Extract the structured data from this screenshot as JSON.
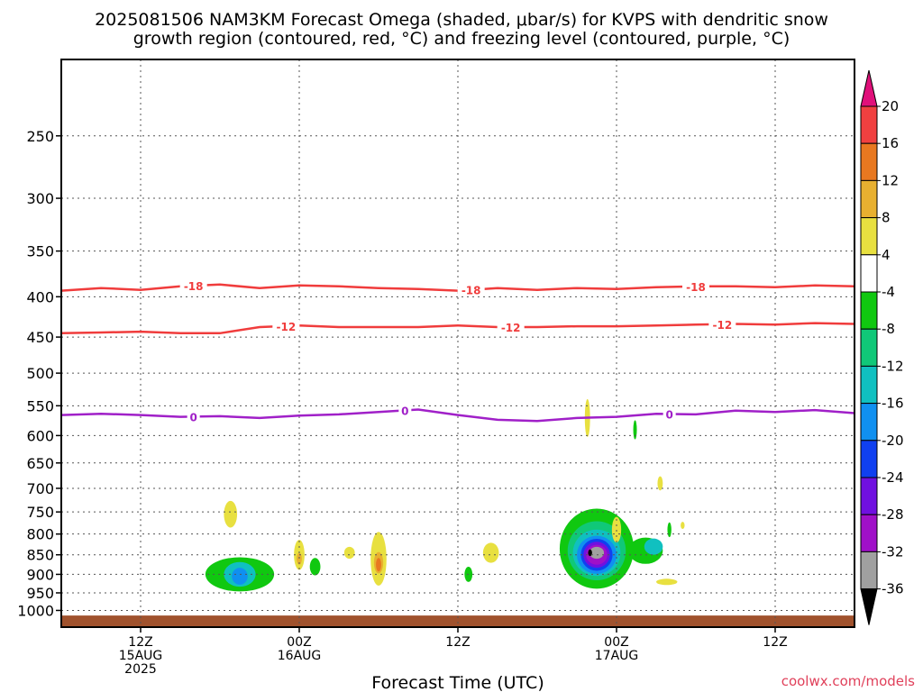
{
  "chart_data": {
    "type": "heatmap",
    "title": [
      "2025081506 NAM3KM Forecast Omega (shaded, μbar/s) for KVPS with dendritic snow",
      "growth region (contoured, red, °C) and freezing level (contoured, purple, °C)"
    ],
    "xlabel": "Forecast Time (UTC)",
    "ylabel": "",
    "credit": "coolwx.com/models",
    "x_range_hours": [
      0,
      60
    ],
    "x_ticks": [
      {
        "hour": 6,
        "label": [
          "12Z",
          "15AUG",
          "2025"
        ]
      },
      {
        "hour": 18,
        "label": [
          "00Z",
          "16AUG"
        ]
      },
      {
        "hour": 30,
        "label": [
          "12Z"
        ]
      },
      {
        "hour": 42,
        "label": [
          "00Z",
          "17AUG"
        ]
      },
      {
        "hour": 54,
        "label": [
          "12Z"
        ]
      }
    ],
    "y_axis": {
      "scale": "log",
      "reversed": true,
      "range": [
        1050,
        200
      ],
      "ticks": [
        250,
        300,
        350,
        400,
        450,
        500,
        550,
        600,
        650,
        700,
        750,
        800,
        850,
        900,
        950,
        1000
      ]
    },
    "grid": true,
    "terrain": {
      "color": "#a0522d",
      "pressure": 1015
    },
    "contours": [
      {
        "name": "-18",
        "color": "#f03c3c",
        "labels": [
          {
            "hour": 10,
            "text": "-18"
          },
          {
            "hour": 31,
            "text": "-18"
          },
          {
            "hour": 48,
            "text": "-18"
          }
        ],
        "x": [
          0,
          3,
          6,
          9,
          12,
          15,
          18,
          21,
          24,
          27,
          30,
          33,
          36,
          39,
          42,
          45,
          48,
          51,
          54,
          57,
          60
        ],
        "y": [
          393,
          390,
          392,
          388,
          386,
          390,
          387,
          388,
          390,
          391,
          393,
          390,
          392,
          390,
          391,
          389,
          388,
          388,
          389,
          387,
          388
        ]
      },
      {
        "name": "-12",
        "color": "#f03c3c",
        "labels": [
          {
            "hour": 17,
            "text": "-12"
          },
          {
            "hour": 34,
            "text": "-12"
          },
          {
            "hour": 50,
            "text": "-12"
          }
        ],
        "x": [
          0,
          3,
          6,
          9,
          12,
          15,
          18,
          21,
          24,
          27,
          30,
          33,
          36,
          39,
          42,
          45,
          48,
          51,
          54,
          57,
          60
        ],
        "y": [
          445,
          444,
          443,
          445,
          445,
          437,
          435,
          437,
          437,
          437,
          435,
          437,
          437,
          436,
          436,
          435,
          434,
          433,
          434,
          432,
          433
        ]
      },
      {
        "name": "0",
        "color": "#a020c8",
        "labels": [
          {
            "hour": 10,
            "text": "0"
          },
          {
            "hour": 26,
            "text": "0"
          },
          {
            "hour": 46,
            "text": "0"
          }
        ],
        "x": [
          0,
          3,
          6,
          9,
          12,
          15,
          18,
          21,
          24,
          27,
          30,
          33,
          36,
          39,
          42,
          45,
          48,
          51,
          54,
          57,
          60
        ],
        "y": [
          565,
          563,
          565,
          568,
          567,
          570,
          566,
          564,
          560,
          556,
          565,
          573,
          575,
          570,
          568,
          563,
          564,
          558,
          560,
          557,
          562
        ]
      }
    ],
    "omega_blobs": [
      {
        "hour": 12.8,
        "p": 755,
        "rx": 0.5,
        "ry": 55,
        "level": 4
      },
      {
        "hour": 13.5,
        "p": 900,
        "rx": 2.6,
        "ry": 85,
        "level": -4
      },
      {
        "hour": 13.5,
        "p": 900,
        "rx": 1.2,
        "ry": 60,
        "level": -12
      },
      {
        "hour": 13.5,
        "p": 905,
        "rx": 0.6,
        "ry": 40,
        "level": -16
      },
      {
        "hour": 18.0,
        "p": 850,
        "rx": 0.4,
        "ry": 70,
        "level": 4
      },
      {
        "hour": 18.0,
        "p": 860,
        "rx": 0.2,
        "ry": 25,
        "level": 8
      },
      {
        "hour": 19.2,
        "p": 880,
        "rx": 0.4,
        "ry": 40,
        "level": -4
      },
      {
        "hour": 21.8,
        "p": 845,
        "rx": 0.4,
        "ry": 25,
        "level": 4
      },
      {
        "hour": 24.0,
        "p": 860,
        "rx": 0.6,
        "ry": 130,
        "level": 4
      },
      {
        "hour": 24.0,
        "p": 870,
        "rx": 0.35,
        "ry": 50,
        "level": 8
      },
      {
        "hour": 24.0,
        "p": 875,
        "rx": 0.2,
        "ry": 30,
        "level": 12
      },
      {
        "hour": 30.8,
        "p": 900,
        "rx": 0.3,
        "ry": 35,
        "level": -4
      },
      {
        "hour": 32.5,
        "p": 845,
        "rx": 0.6,
        "ry": 45,
        "level": 4
      },
      {
        "hour": 39.8,
        "p": 570,
        "rx": 0.2,
        "ry": 60,
        "level": 4
      },
      {
        "hour": 40.5,
        "p": 835,
        "rx": 2.8,
        "ry": 190,
        "level": -4
      },
      {
        "hour": 40.5,
        "p": 840,
        "rx": 2.2,
        "ry": 140,
        "level": -8
      },
      {
        "hour": 40.5,
        "p": 845,
        "rx": 1.8,
        "ry": 110,
        "level": -12
      },
      {
        "hour": 40.5,
        "p": 850,
        "rx": 1.5,
        "ry": 90,
        "level": -16
      },
      {
        "hour": 40.5,
        "p": 850,
        "rx": 1.2,
        "ry": 75,
        "level": -20
      },
      {
        "hour": 40.5,
        "p": 850,
        "rx": 1.0,
        "ry": 60,
        "level": -24
      },
      {
        "hour": 40.5,
        "p": 850,
        "rx": 0.8,
        "ry": 45,
        "level": -28
      },
      {
        "hour": 40.5,
        "p": 845,
        "rx": 0.55,
        "ry": 25,
        "level": -32
      },
      {
        "hour": 40.0,
        "p": 845,
        "rx": 0.15,
        "ry": 12,
        "level": -36
      },
      {
        "hour": 42.0,
        "p": 790,
        "rx": 0.35,
        "ry": 55,
        "level": 4
      },
      {
        "hour": 43.4,
        "p": 590,
        "rx": 0.12,
        "ry": 30,
        "level": -4
      },
      {
        "hour": 44.2,
        "p": 840,
        "rx": 1.3,
        "ry": 60,
        "level": -4
      },
      {
        "hour": 44.8,
        "p": 830,
        "rx": 0.7,
        "ry": 35,
        "level": -12
      },
      {
        "hour": 45.3,
        "p": 690,
        "rx": 0.2,
        "ry": 25,
        "level": 4
      },
      {
        "hour": 45.8,
        "p": 920,
        "rx": 0.8,
        "ry": 12,
        "level": 4
      },
      {
        "hour": 46.0,
        "p": 790,
        "rx": 0.15,
        "ry": 30,
        "level": -4
      },
      {
        "hour": 47.0,
        "p": 780,
        "rx": 0.15,
        "ry": 12,
        "level": 4
      }
    ]
  },
  "colorbar": {
    "labels": [
      "20",
      "16",
      "12",
      "8",
      "4",
      "-4",
      "-8",
      "-12",
      "-16",
      "-20",
      "-24",
      "-28",
      "-32",
      "-36"
    ],
    "bins": [
      {
        "level": 20,
        "color": "#e0107a"
      },
      {
        "level": 16,
        "color": "#f04040"
      },
      {
        "level": 12,
        "color": "#e87820"
      },
      {
        "level": 8,
        "color": "#e8b030"
      },
      {
        "level": 4,
        "color": "#e8e040"
      },
      {
        "level": 0,
        "color": "#ffffff"
      },
      {
        "level": -4,
        "color": "#10c810"
      },
      {
        "level": -8,
        "color": "#10c878"
      },
      {
        "level": -12,
        "color": "#10c0c0"
      },
      {
        "level": -16,
        "color": "#1090f0"
      },
      {
        "level": -20,
        "color": "#1040f0"
      },
      {
        "level": -24,
        "color": "#7010e0"
      },
      {
        "level": -28,
        "color": "#a010c8"
      },
      {
        "level": -32,
        "color": "#a0a0a0"
      },
      {
        "level": -36,
        "color": "#000000"
      }
    ]
  }
}
